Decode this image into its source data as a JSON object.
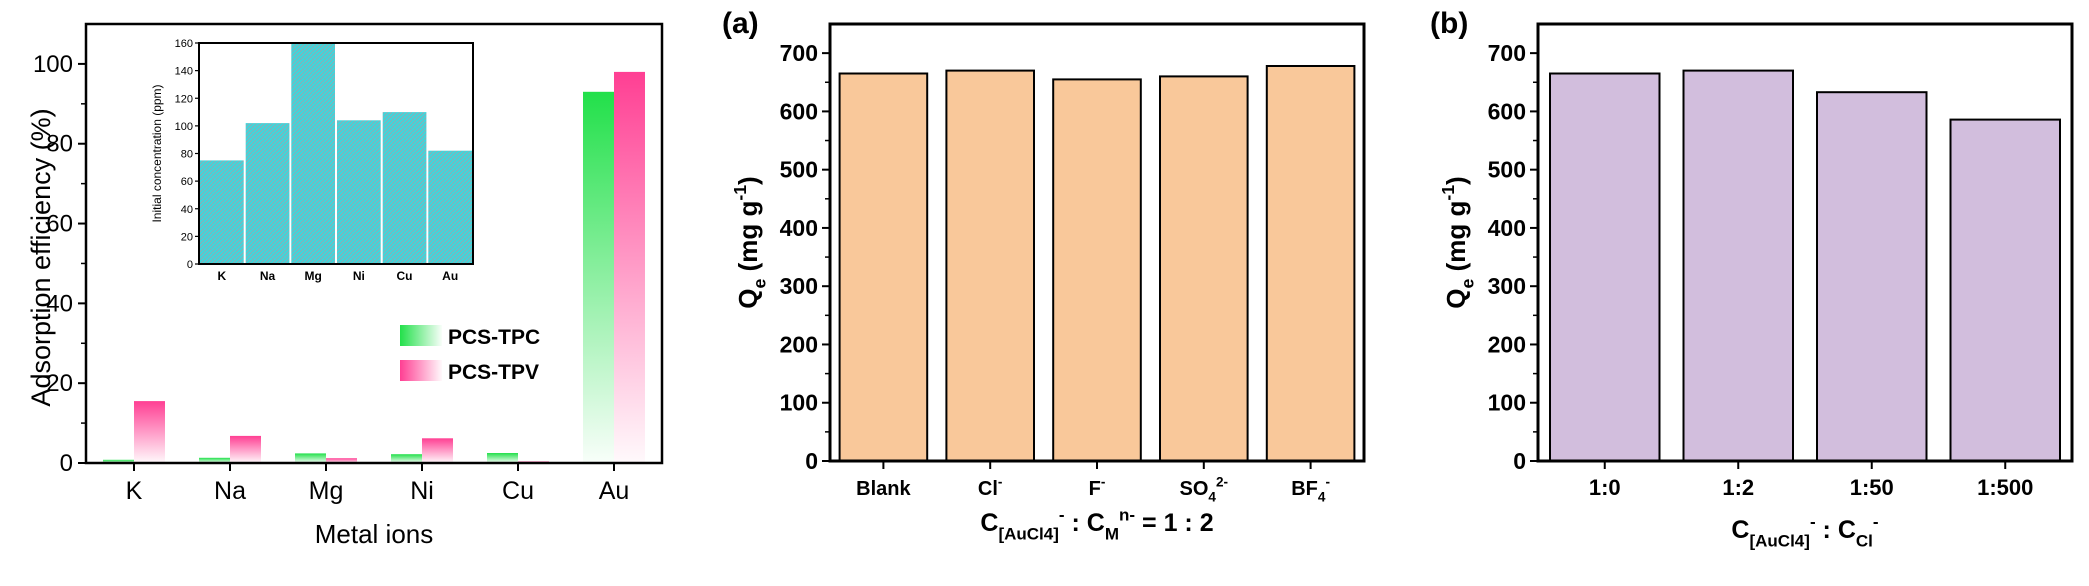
{
  "colors": {
    "tpc": "#22e04a",
    "tpv": "#ff3f93",
    "inset_bar": "#3fd6dc",
    "panel_a_bar": "#f9c89a",
    "panel_b_bar": "#d2bedd",
    "axis": "#000000"
  },
  "chart_data": [
    {
      "id": "left",
      "type": "bar",
      "xlabel": "Metal ions",
      "ylabel": "Adsorption efficiency (%)",
      "categories": [
        "K",
        "Na",
        "Mg",
        "Ni",
        "Cu",
        "Au"
      ],
      "ylim": [
        0,
        110
      ],
      "yticks": [
        0,
        20,
        40,
        60,
        80,
        100
      ],
      "series": [
        {
          "name": "PCS-TPC",
          "values": [
            0.8,
            1.3,
            2.4,
            2.2,
            2.5,
            93
          ]
        },
        {
          "name": "PCS-TPV",
          "values": [
            15.5,
            6.8,
            1.2,
            6.2,
            0.4,
            98
          ]
        }
      ],
      "legend": "middle-right",
      "inset": {
        "type": "bar",
        "ylabel": "Initial concentration (ppm)",
        "categories": [
          "K",
          "Na",
          "Mg",
          "Ni",
          "Cu",
          "Au"
        ],
        "values": [
          75,
          102,
          160,
          104,
          110,
          82
        ],
        "ylim": [
          0,
          160
        ],
        "yticks": [
          0,
          20,
          40,
          60,
          80,
          100,
          120,
          140,
          160
        ]
      }
    },
    {
      "id": "a",
      "type": "bar",
      "panel_label": "(a)",
      "xlabel": "C[AuCl4]- : CMn- = 1 : 2",
      "ylabel": "Qe (mg g-1)",
      "categories": [
        "Blank",
        "Cl-",
        "F-",
        "SO42-",
        "BF4-"
      ],
      "values": [
        665,
        670,
        655,
        660,
        678
      ],
      "ylim": [
        0,
        750
      ],
      "yticks": [
        0,
        100,
        200,
        300,
        400,
        500,
        600,
        700
      ]
    },
    {
      "id": "b",
      "type": "bar",
      "panel_label": "(b)",
      "xlabel": "C[AuCl4]- : CCl-",
      "ylabel": "Qe (mg g-1)",
      "categories": [
        "1:0",
        "1:2",
        "1:50",
        "1:500"
      ],
      "values": [
        665,
        670,
        633,
        586
      ],
      "ylim": [
        0,
        750
      ],
      "yticks": [
        0,
        100,
        200,
        300,
        400,
        500,
        600,
        700
      ]
    }
  ],
  "rich_labels": {
    "a_cats": [
      [
        {
          "t": "Blank"
        }
      ],
      [
        {
          "t": "Cl"
        },
        {
          "t": "-",
          "s": "sup"
        }
      ],
      [
        {
          "t": "F"
        },
        {
          "t": "-",
          "s": "sup"
        }
      ],
      [
        {
          "t": "SO"
        },
        {
          "t": "4",
          "s": "sub"
        },
        {
          "t": "2-",
          "s": "sup"
        }
      ],
      [
        {
          "t": "BF"
        },
        {
          "t": "4",
          "s": "sub"
        },
        {
          "t": "-",
          "s": "sup"
        }
      ]
    ],
    "a_xlabel": [
      {
        "t": "C"
      },
      {
        "t": "[AuCl4]",
        "s": "sub"
      },
      {
        "t": "-",
        "s": "sup"
      },
      {
        "t": " : C"
      },
      {
        "t": "M",
        "s": "sub"
      },
      {
        "t": "n-",
        "s": "sup"
      },
      {
        "t": " = 1 : 2"
      }
    ],
    "b_xlabel": [
      {
        "t": "C"
      },
      {
        "t": "[AuCl4]",
        "s": "sub"
      },
      {
        "t": "-",
        "s": "sup"
      },
      {
        "t": " : C"
      },
      {
        "t": "Cl",
        "s": "sub"
      },
      {
        "t": "-",
        "s": "sup"
      }
    ],
    "q_ylabel": [
      {
        "t": "Q"
      },
      {
        "t": "e",
        "s": "sub"
      },
      {
        "t": " (mg g"
      },
      {
        "t": "-1",
        "s": "sup"
      },
      {
        "t": ")"
      }
    ]
  }
}
